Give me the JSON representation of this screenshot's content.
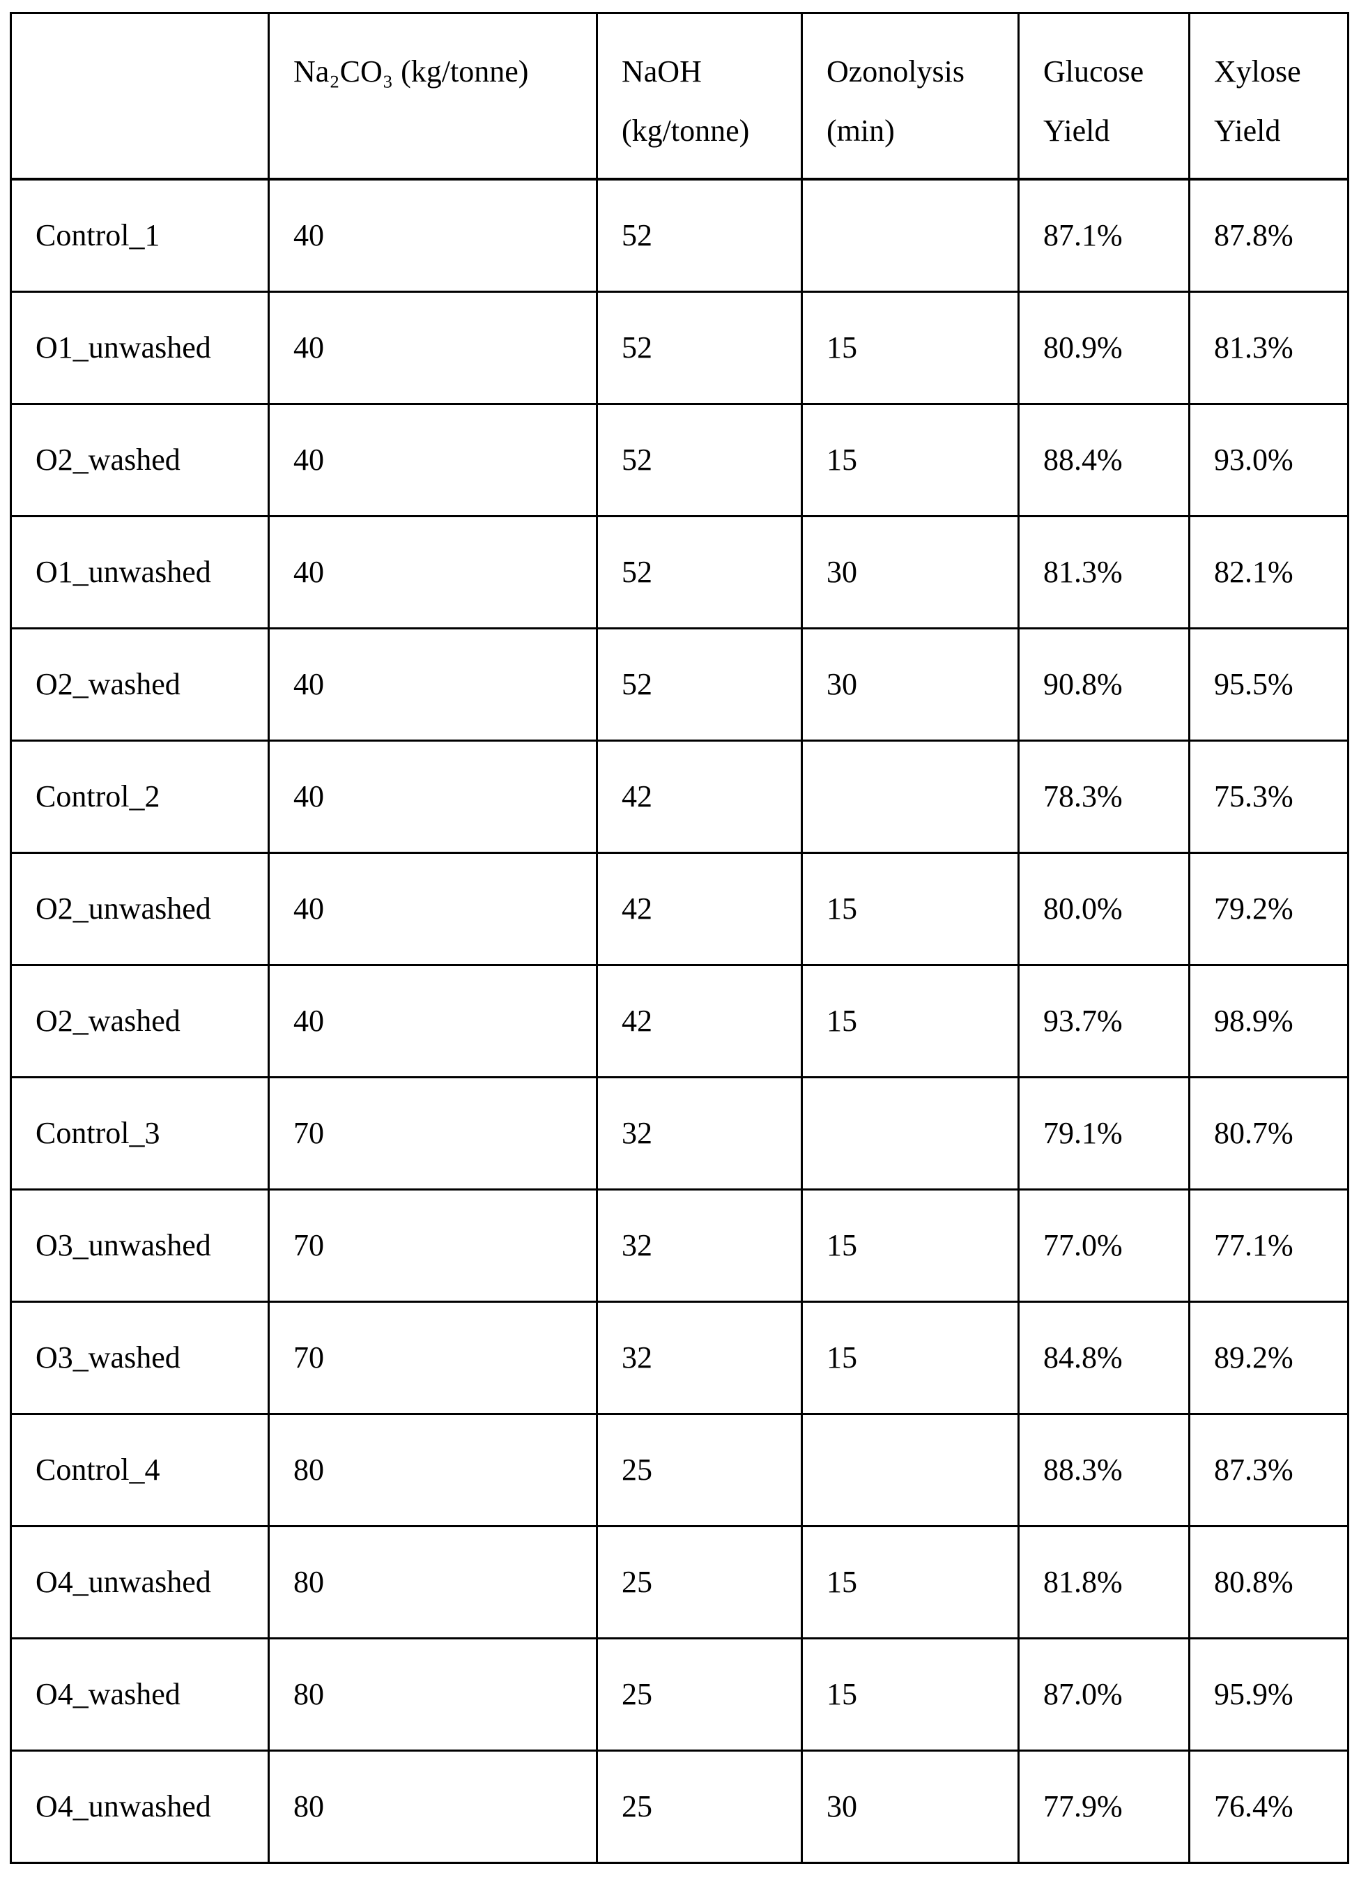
{
  "table": {
    "headers": [
      "",
      "Na₂CO₃ (kg/tonne)",
      "NaOH (kg/tonne)",
      "Ozonolysis (min)",
      "Glucose Yield",
      "Xylose Yield"
    ],
    "rows": [
      [
        "Control_1",
        "40",
        "52",
        "",
        "87.1%",
        "87.8%"
      ],
      [
        "O1_unwashed",
        "40",
        "52",
        "15",
        "80.9%",
        "81.3%"
      ],
      [
        "O2_washed",
        "40",
        "52",
        "15",
        "88.4%",
        "93.0%"
      ],
      [
        "O1_unwashed",
        "40",
        "52",
        "30",
        "81.3%",
        "82.1%"
      ],
      [
        "O2_washed",
        "40",
        "52",
        "30",
        "90.8%",
        "95.5%"
      ],
      [
        "Control_2",
        "40",
        "42",
        "",
        "78.3%",
        "75.3%"
      ],
      [
        "O2_unwashed",
        "40",
        "42",
        "15",
        "80.0%",
        "79.2%"
      ],
      [
        "O2_washed",
        "40",
        "42",
        "15",
        "93.7%",
        "98.9%"
      ],
      [
        "Control_3",
        "70",
        "32",
        "",
        "79.1%",
        "80.7%"
      ],
      [
        "O3_unwashed",
        "70",
        "32",
        "15",
        "77.0%",
        "77.1%"
      ],
      [
        "O3_washed",
        "70",
        "32",
        "15",
        "84.8%",
        "89.2%"
      ],
      [
        "Control_4",
        "80",
        "25",
        "",
        "88.3%",
        "87.3%"
      ],
      [
        "O4_unwashed",
        "80",
        "25",
        "15",
        "81.8%",
        "80.8%"
      ],
      [
        "O4_washed",
        "80",
        "25",
        "15",
        "87.0%",
        "95.9%"
      ],
      [
        "O4_unwashed",
        "80",
        "25",
        "30",
        "77.9%",
        "76.4%"
      ]
    ]
  }
}
